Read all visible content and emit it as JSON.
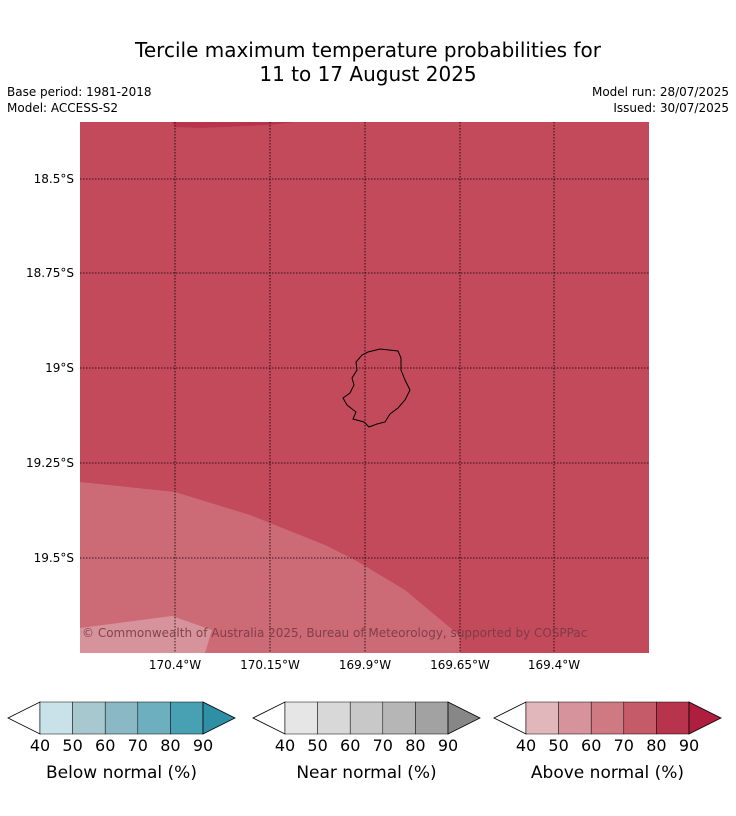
{
  "title": {
    "line1": "Tercile maximum temperature probabilities for",
    "line2": "11 to 17 August 2025"
  },
  "meta": {
    "base_period": "Base period: 1981-2018",
    "model": "Model: ACCESS-S2",
    "model_run": "Model run: 28/07/2025",
    "issued": "Issued: 30/07/2025"
  },
  "map": {
    "lat_labels": [
      "18.5°S",
      "18.75°S",
      "19°S",
      "19.25°S",
      "19.5°S"
    ],
    "lon_labels": [
      "170.4°W",
      "170.15°W",
      "169.9°W",
      "169.65°W",
      "169.4°W"
    ],
    "copyright": "© Commonwealth of Australia 2025, Bureau of Meteorology, supported by COSPPac",
    "colors": {
      "above_70_80": "#c24a5b",
      "above_60_70": "#cc6b76",
      "above_50_60": "#d6939b",
      "coast": "#000000"
    }
  },
  "colorbars": [
    {
      "name": "below",
      "label": "Below normal (%)",
      "ticks": [
        "40",
        "50",
        "60",
        "70",
        "80",
        "90"
      ],
      "colors": [
        "#c9e2e9",
        "#a7c8ce",
        "#8ab9c5",
        "#6dafbe",
        "#48a1b3",
        "#2e8fa5"
      ]
    },
    {
      "name": "near",
      "label": "Near normal (%)",
      "ticks": [
        "40",
        "50",
        "60",
        "70",
        "80",
        "90"
      ],
      "colors": [
        "#e6e6e6",
        "#d8d8d8",
        "#c8c8c8",
        "#b6b6b6",
        "#a2a2a2",
        "#878787"
      ]
    },
    {
      "name": "above",
      "label": "Above normal (%)",
      "ticks": [
        "40",
        "50",
        "60",
        "70",
        "80",
        "90"
      ],
      "colors": [
        "#e2b7bc",
        "#d6939b",
        "#cf7a83",
        "#c55a68",
        "#b8344c",
        "#b01e3f"
      ]
    }
  ]
}
